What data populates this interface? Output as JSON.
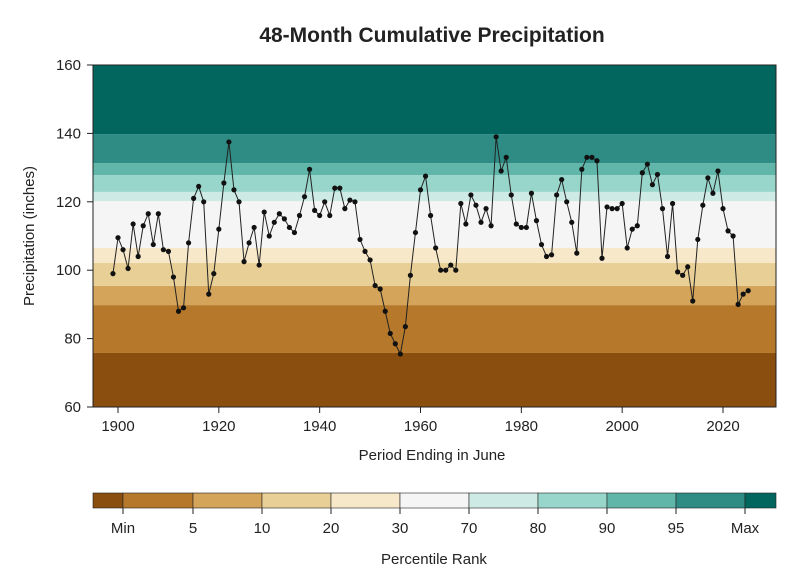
{
  "chart_data": {
    "type": "line",
    "title": "48-Month Cumulative Precipitation",
    "xlabel": "Period Ending in June",
    "ylabel": "Precipitation (inches)",
    "xlim": [
      1895,
      2030
    ],
    "ylim": [
      60,
      160
    ],
    "xticks": [
      1900,
      1920,
      1940,
      1960,
      1980,
      2000,
      2020
    ],
    "yticks": [
      60,
      80,
      100,
      120,
      140,
      160
    ],
    "grid": false,
    "line_color": "#222222",
    "percentile_bands": [
      {
        "from": 60,
        "to": 75.8,
        "color": "#8a4f0e"
      },
      {
        "from": 75.8,
        "to": 89.8,
        "color": "#b6792b"
      },
      {
        "from": 89.8,
        "to": 95.4,
        "color": "#d3a45a"
      },
      {
        "from": 95.4,
        "to": 102.1,
        "color": "#e8cf96"
      },
      {
        "from": 102.1,
        "to": 106.5,
        "color": "#f6e8c8"
      },
      {
        "from": 106.5,
        "to": 120.2,
        "color": "#f4f5f4"
      },
      {
        "from": 120.2,
        "to": 122.9,
        "color": "#cdeae5"
      },
      {
        "from": 122.9,
        "to": 127.8,
        "color": "#98d6cb"
      },
      {
        "from": 127.8,
        "to": 131.3,
        "color": "#5fb6a9"
      },
      {
        "from": 131.3,
        "to": 139.8,
        "color": "#2e8c85"
      },
      {
        "from": 139.8,
        "to": 160,
        "color": "#02665e"
      }
    ],
    "x": [
      1899,
      1900,
      1901,
      1902,
      1903,
      1904,
      1905,
      1906,
      1907,
      1908,
      1909,
      1910,
      1911,
      1912,
      1913,
      1914,
      1915,
      1916,
      1917,
      1918,
      1919,
      1920,
      1921,
      1922,
      1923,
      1924,
      1925,
      1926,
      1927,
      1928,
      1929,
      1930,
      1931,
      1932,
      1933,
      1934,
      1935,
      1936,
      1937,
      1938,
      1939,
      1940,
      1941,
      1942,
      1943,
      1944,
      1945,
      1946,
      1947,
      1948,
      1949,
      1950,
      1951,
      1952,
      1953,
      1954,
      1955,
      1956,
      1957,
      1958,
      1959,
      1960,
      1961,
      1962,
      1963,
      1964,
      1965,
      1966,
      1967,
      1968,
      1969,
      1970,
      1971,
      1972,
      1973,
      1974,
      1975,
      1976,
      1977,
      1978,
      1979,
      1980,
      1981,
      1982,
      1983,
      1984,
      1985,
      1986,
      1987,
      1988,
      1989,
      1990,
      1991,
      1992,
      1993,
      1994,
      1995,
      1996,
      1997,
      1998,
      1999,
      2000,
      2001,
      2002,
      2003,
      2004,
      2005,
      2006,
      2007,
      2008,
      2009,
      2010,
      2011,
      2012,
      2013,
      2014,
      2015,
      2016,
      2017,
      2018,
      2019,
      2020,
      2021,
      2022,
      2023,
      2024,
      2025
    ],
    "y": [
      99,
      109.5,
      106,
      100.5,
      113.5,
      104,
      113,
      116.5,
      107.5,
      116.5,
      106,
      105.5,
      98,
      88,
      89,
      108,
      121,
      124.5,
      120,
      93,
      99,
      112,
      125.5,
      137.5,
      123.5,
      120,
      102.5,
      108,
      112.5,
      101.5,
      117,
      110,
      114,
      116.5,
      115,
      112.5,
      111,
      116,
      121.5,
      129.5,
      117.5,
      116,
      120,
      116,
      124,
      124,
      118,
      120.5,
      120,
      109,
      105.5,
      103,
      95.5,
      94.5,
      88,
      81.5,
      78.5,
      75.5,
      83.5,
      98.5,
      111,
      123.5,
      127.5,
      116,
      106.5,
      100,
      100,
      101.5,
      100,
      119.5,
      113.5,
      122,
      119,
      114,
      118,
      113,
      139,
      129,
      133,
      122,
      113.5,
      112.5,
      112.5,
      122.5,
      114.5,
      107.5,
      104,
      104.5,
      122,
      126.5,
      120,
      114,
      105,
      129.5,
      133,
      133,
      132,
      103.5,
      118.5,
      118,
      118,
      119.5,
      106.5,
      112,
      113,
      128.5,
      131,
      125,
      128,
      118,
      104,
      119.5,
      99.5,
      98.5,
      101,
      91,
      109,
      119,
      127,
      122.5,
      129,
      118,
      111.5,
      110,
      90,
      93,
      94
    ]
  },
  "colorbar": {
    "label": "Percentile Rank",
    "ticks": [
      "Min",
      "5",
      "10",
      "20",
      "30",
      "70",
      "80",
      "90",
      "95",
      "Max"
    ],
    "colors": [
      "#8a4f0e",
      "#b6792b",
      "#d3a45a",
      "#e8cf96",
      "#f6e8c8",
      "#f4f5f4",
      "#cdeae5",
      "#98d6cb",
      "#5fb6a9",
      "#2e8c85",
      "#02665e"
    ]
  }
}
